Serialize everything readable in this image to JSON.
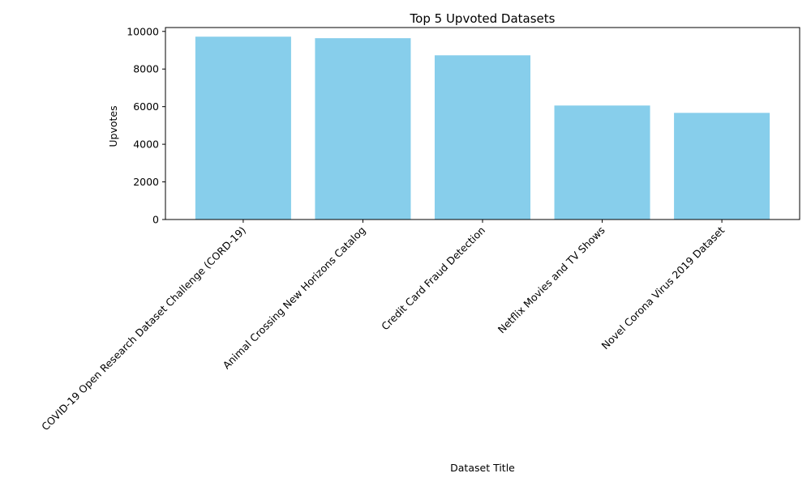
{
  "chart_data": {
    "type": "bar",
    "title": "Top 5 Upvoted Datasets",
    "xlabel": "Dataset Title",
    "ylabel": "Upvotes",
    "categories": [
      "COVID-19 Open Research Dataset Challenge (CORD-19)",
      "Animal Crossing New Horizons Catalog",
      "Credit Card Fraud Detection",
      "Netflix Movies and TV Shows",
      "Novel Corona Virus 2019 Dataset"
    ],
    "values": [
      9720,
      9640,
      8730,
      6060,
      5670
    ],
    "ylim": [
      0,
      10206
    ],
    "yticks": [
      0,
      2000,
      4000,
      6000,
      8000,
      10000
    ],
    "bar_color": "#87ceeb",
    "grid": false
  }
}
